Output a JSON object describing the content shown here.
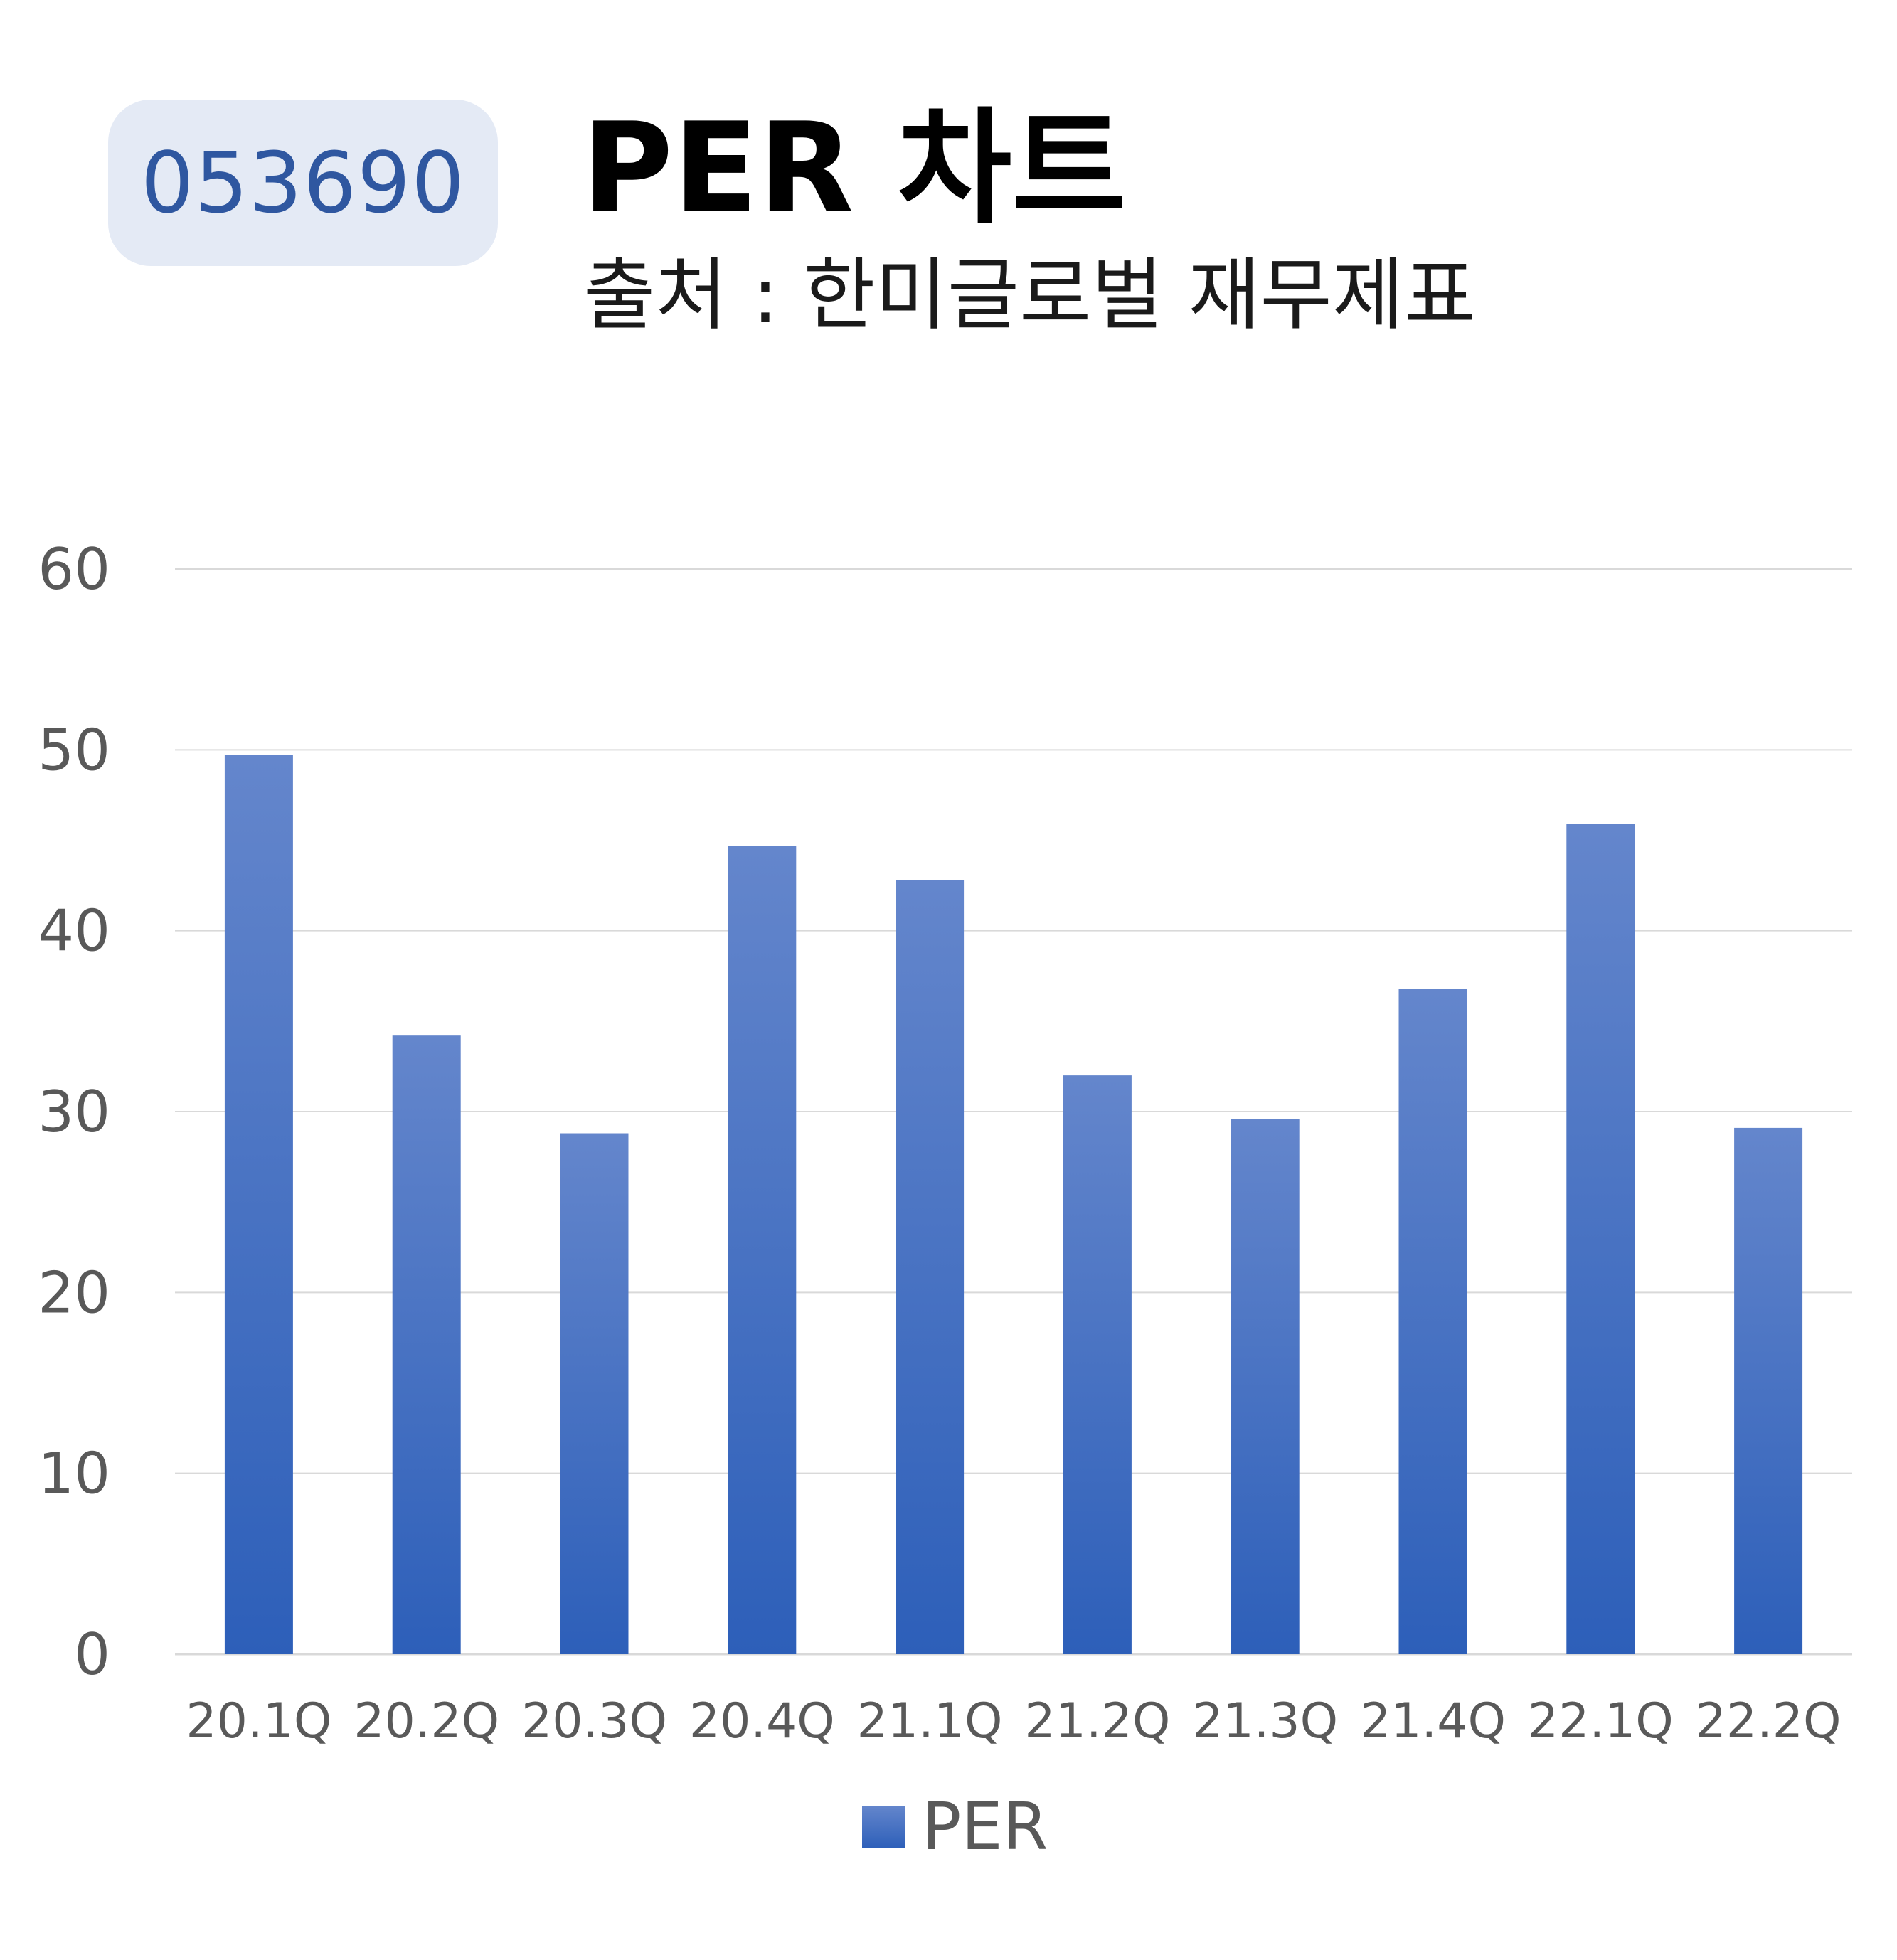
{
  "header": {
    "ticker": "053690",
    "title": "PER 차트",
    "subtitle": "출처 : 한미글로벌 재무제표"
  },
  "chart_data": {
    "type": "bar",
    "categories": [
      "20.1Q",
      "20.2Q",
      "20.3Q",
      "20.4Q",
      "21.1Q",
      "21.2Q",
      "21.3Q",
      "21.4Q",
      "22.1Q",
      "22.2Q"
    ],
    "series": [
      {
        "name": "PER",
        "values": [
          49.7,
          34.2,
          28.8,
          44.7,
          42.8,
          32.0,
          29.6,
          36.8,
          45.9,
          29.1
        ]
      }
    ],
    "y_ticks": [
      0,
      10,
      20,
      30,
      40,
      50,
      60
    ],
    "ylim": [
      0,
      60
    ],
    "grid": true,
    "legend_position": "bottom",
    "colors": {
      "bar_top": "#6486cc",
      "bar_bottom": "#2d5fb9",
      "grid": "#d9d9d9",
      "axis_text": "#595959"
    }
  }
}
